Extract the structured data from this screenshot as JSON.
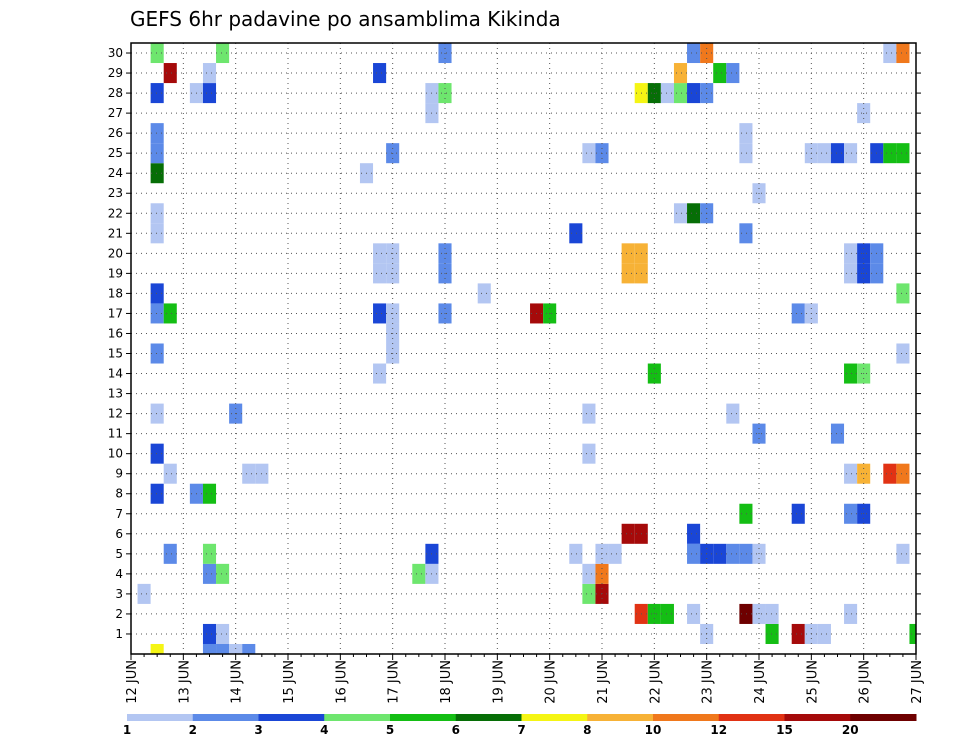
{
  "chart_data": {
    "type": "heatmap",
    "title": "GEFS 6hr padavine po ansamblima Kikinda",
    "xlabel": "",
    "ylabel": "",
    "x_ticks": [
      "12 JUN",
      "13 JUN",
      "14 JUN",
      "15 JUN",
      "16 JUN",
      "17 JUN",
      "18 JUN",
      "19 JUN",
      "20 JUN",
      "21 JUN",
      "22 JUN",
      "23 JUN",
      "24 JUN",
      "25 JUN",
      "26 JUN",
      "27 JUN"
    ],
    "y_ticks": [
      1,
      2,
      3,
      4,
      5,
      6,
      7,
      8,
      9,
      10,
      11,
      12,
      13,
      14,
      15,
      16,
      17,
      18,
      19,
      20,
      21,
      22,
      23,
      24,
      25,
      26,
      27,
      28,
      29,
      30
    ],
    "x_range": [
      "12 JUN 00Z",
      "27 JUN 00Z"
    ],
    "y_range": [
      0,
      30
    ],
    "time_step_hours": 6,
    "grid": true,
    "colorbar": {
      "labels": [
        "1",
        "2",
        "3",
        "4",
        "5",
        "6",
        "7",
        "8",
        "10",
        "12",
        "15",
        "20"
      ],
      "colors": [
        "#b3c6f2",
        "#5c8ae8",
        "#1a46d6",
        "#6ee66e",
        "#14be14",
        "#066e06",
        "#f5f514",
        "#f7b236",
        "#f0781c",
        "#e13214",
        "#a50a0a",
        "#6e0000"
      ]
    },
    "cells": [
      {
        "t": "12 JUN 12Z",
        "m": 0,
        "c": "#f5f514"
      },
      {
        "t": "13 JUN 12Z",
        "m": 0,
        "c": "#5c8ae8"
      },
      {
        "t": "13 JUN 18Z",
        "m": 0,
        "c": "#5c8ae8"
      },
      {
        "t": "14 JUN 00Z",
        "m": 0,
        "c": "#b3c6f2"
      },
      {
        "t": "14 JUN 06Z",
        "m": 0,
        "c": "#5c8ae8"
      },
      {
        "t": "13 JUN 12Z",
        "m": 1,
        "c": "#1a46d6"
      },
      {
        "t": "13 JUN 18Z",
        "m": 1,
        "c": "#b3c6f2"
      },
      {
        "t": "23 JUN 00Z",
        "m": 1,
        "c": "#b3c6f2"
      },
      {
        "t": "24 JUN 06Z",
        "m": 1,
        "c": "#14be14"
      },
      {
        "t": "24 JUN 18Z",
        "m": 1,
        "c": "#a50a0a"
      },
      {
        "t": "25 JUN 00Z",
        "m": 1,
        "c": "#b3c6f2"
      },
      {
        "t": "25 JUN 06Z",
        "m": 1,
        "c": "#b3c6f2"
      },
      {
        "t": "27 JUN 00Z",
        "m": 1,
        "c": "#14be14"
      },
      {
        "t": "21 JUN 18Z",
        "m": 2,
        "c": "#e13214"
      },
      {
        "t": "22 JUN 00Z",
        "m": 2,
        "c": "#14be14"
      },
      {
        "t": "22 JUN 06Z",
        "m": 2,
        "c": "#14be14"
      },
      {
        "t": "22 JUN 18Z",
        "m": 2,
        "c": "#b3c6f2"
      },
      {
        "t": "23 JUN 18Z",
        "m": 2,
        "c": "#6e0000"
      },
      {
        "t": "24 JUN 00Z",
        "m": 2,
        "c": "#b3c6f2"
      },
      {
        "t": "24 JUN 06Z",
        "m": 2,
        "c": "#b3c6f2"
      },
      {
        "t": "25 JUN 18Z",
        "m": 2,
        "c": "#b3c6f2"
      },
      {
        "t": "12 JUN 06Z",
        "m": 3,
        "c": "#b3c6f2"
      },
      {
        "t": "20 JUN 18Z",
        "m": 3,
        "c": "#6ee66e"
      },
      {
        "t": "21 JUN 00Z",
        "m": 3,
        "c": "#a50a0a"
      },
      {
        "t": "13 JUN 12Z",
        "m": 4,
        "c": "#5c8ae8"
      },
      {
        "t": "13 JUN 18Z",
        "m": 4,
        "c": "#6ee66e"
      },
      {
        "t": "17 JUN 12Z",
        "m": 4,
        "c": "#6ee66e"
      },
      {
        "t": "17 JUN 18Z",
        "m": 4,
        "c": "#b3c6f2"
      },
      {
        "t": "20 JUN 18Z",
        "m": 4,
        "c": "#b3c6f2"
      },
      {
        "t": "21 JUN 00Z",
        "m": 4,
        "c": "#f0781c"
      },
      {
        "t": "12 JUN 18Z",
        "m": 5,
        "c": "#5c8ae8"
      },
      {
        "t": "13 JUN 12Z",
        "m": 5,
        "c": "#6ee66e"
      },
      {
        "t": "17 JUN 18Z",
        "m": 5,
        "c": "#1a46d6"
      },
      {
        "t": "20 JUN 12Z",
        "m": 5,
        "c": "#b3c6f2"
      },
      {
        "t": "21 JUN 00Z",
        "m": 5,
        "c": "#b3c6f2"
      },
      {
        "t": "21 JUN 06Z",
        "m": 5,
        "c": "#b3c6f2"
      },
      {
        "t": "22 JUN 18Z",
        "m": 5,
        "c": "#5c8ae8"
      },
      {
        "t": "23 JUN 00Z",
        "m": 5,
        "c": "#1a46d6"
      },
      {
        "t": "23 JUN 06Z",
        "m": 5,
        "c": "#1a46d6"
      },
      {
        "t": "23 JUN 12Z",
        "m": 5,
        "c": "#5c8ae8"
      },
      {
        "t": "23 JUN 18Z",
        "m": 5,
        "c": "#5c8ae8"
      },
      {
        "t": "24 JUN 00Z",
        "m": 5,
        "c": "#b3c6f2"
      },
      {
        "t": "26 JUN 18Z",
        "m": 5,
        "c": "#b3c6f2"
      },
      {
        "t": "21 JUN 12Z",
        "m": 6,
        "c": "#a50a0a"
      },
      {
        "t": "21 JUN 18Z",
        "m": 6,
        "c": "#a50a0a"
      },
      {
        "t": "22 JUN 18Z",
        "m": 6,
        "c": "#1a46d6"
      },
      {
        "t": "23 JUN 18Z",
        "m": 7,
        "c": "#14be14"
      },
      {
        "t": "24 JUN 18Z",
        "m": 7,
        "c": "#1a46d6"
      },
      {
        "t": "25 JUN 18Z",
        "m": 7,
        "c": "#5c8ae8"
      },
      {
        "t": "26 JUN 00Z",
        "m": 7,
        "c": "#1a46d6"
      },
      {
        "t": "12 JUN 12Z",
        "m": 8,
        "c": "#1a46d6"
      },
      {
        "t": "13 JUN 06Z",
        "m": 8,
        "c": "#5c8ae8"
      },
      {
        "t": "13 JUN 12Z",
        "m": 8,
        "c": "#14be14"
      },
      {
        "t": "12 JUN 18Z",
        "m": 9,
        "c": "#b3c6f2"
      },
      {
        "t": "14 JUN 06Z",
        "m": 9,
        "c": "#b3c6f2"
      },
      {
        "t": "14 JUN 12Z",
        "m": 9,
        "c": "#b3c6f2"
      },
      {
        "t": "25 JUN 18Z",
        "m": 9,
        "c": "#b3c6f2"
      },
      {
        "t": "26 JUN 00Z",
        "m": 9,
        "c": "#f7b236"
      },
      {
        "t": "26 JUN 12Z",
        "m": 9,
        "c": "#e13214"
      },
      {
        "t": "26 JUN 18Z",
        "m": 9,
        "c": "#f0781c"
      },
      {
        "t": "12 JUN 12Z",
        "m": 10,
        "c": "#1a46d6"
      },
      {
        "t": "20 JUN 18Z",
        "m": 10,
        "c": "#b3c6f2"
      },
      {
        "t": "24 JUN 00Z",
        "m": 11,
        "c": "#5c8ae8"
      },
      {
        "t": "25 JUN 12Z",
        "m": 11,
        "c": "#5c8ae8"
      },
      {
        "t": "12 JUN 12Z",
        "m": 12,
        "c": "#b3c6f2"
      },
      {
        "t": "14 JUN 00Z",
        "m": 12,
        "c": "#5c8ae8"
      },
      {
        "t": "20 JUN 18Z",
        "m": 12,
        "c": "#b3c6f2"
      },
      {
        "t": "23 JUN 12Z",
        "m": 12,
        "c": "#b3c6f2"
      },
      {
        "t": "16 JUN 18Z",
        "m": 14,
        "c": "#b3c6f2"
      },
      {
        "t": "22 JUN 00Z",
        "m": 14,
        "c": "#14be14"
      },
      {
        "t": "25 JUN 18Z",
        "m": 14,
        "c": "#14be14"
      },
      {
        "t": "26 JUN 00Z",
        "m": 14,
        "c": "#6ee66e"
      },
      {
        "t": "12 JUN 12Z",
        "m": 15,
        "c": "#5c8ae8"
      },
      {
        "t": "17 JUN 00Z",
        "m": 15,
        "c": "#b3c6f2"
      },
      {
        "t": "26 JUN 18Z",
        "m": 15,
        "c": "#b3c6f2"
      },
      {
        "t": "17 JUN 00Z",
        "m": 16,
        "c": "#b3c6f2"
      },
      {
        "t": "12 JUN 12Z",
        "m": 17,
        "c": "#5c8ae8"
      },
      {
        "t": "12 JUN 18Z",
        "m": 17,
        "c": "#14be14"
      },
      {
        "t": "16 JUN 18Z",
        "m": 17,
        "c": "#1a46d6"
      },
      {
        "t": "17 JUN 00Z",
        "m": 17,
        "c": "#b3c6f2"
      },
      {
        "t": "18 JUN 00Z",
        "m": 17,
        "c": "#5c8ae8"
      },
      {
        "t": "19 JUN 18Z",
        "m": 17,
        "c": "#a50a0a"
      },
      {
        "t": "20 JUN 00Z",
        "m": 17,
        "c": "#14be14"
      },
      {
        "t": "24 JUN 18Z",
        "m": 17,
        "c": "#5c8ae8"
      },
      {
        "t": "25 JUN 00Z",
        "m": 17,
        "c": "#b3c6f2"
      },
      {
        "t": "12 JUN 12Z",
        "m": 18,
        "c": "#1a46d6"
      },
      {
        "t": "18 JUN 18Z",
        "m": 18,
        "c": "#b3c6f2"
      },
      {
        "t": "26 JUN 18Z",
        "m": 18,
        "c": "#6ee66e"
      },
      {
        "t": "16 JUN 18Z",
        "m": 19,
        "c": "#b3c6f2"
      },
      {
        "t": "17 JUN 00Z",
        "m": 19,
        "c": "#b3c6f2"
      },
      {
        "t": "18 JUN 00Z",
        "m": 19,
        "c": "#5c8ae8"
      },
      {
        "t": "21 JUN 12Z",
        "m": 19,
        "c": "#f7b236"
      },
      {
        "t": "21 JUN 18Z",
        "m": 19,
        "c": "#f7b236"
      },
      {
        "t": "25 JUN 18Z",
        "m": 19,
        "c": "#b3c6f2"
      },
      {
        "t": "26 JUN 00Z",
        "m": 19,
        "c": "#1a46d6"
      },
      {
        "t": "26 JUN 06Z",
        "m": 19,
        "c": "#5c8ae8"
      },
      {
        "t": "16 JUN 18Z",
        "m": 20,
        "c": "#b3c6f2"
      },
      {
        "t": "17 JUN 00Z",
        "m": 20,
        "c": "#b3c6f2"
      },
      {
        "t": "18 JUN 00Z",
        "m": 20,
        "c": "#5c8ae8"
      },
      {
        "t": "21 JUN 12Z",
        "m": 20,
        "c": "#f7b236"
      },
      {
        "t": "21 JUN 18Z",
        "m": 20,
        "c": "#f7b236"
      },
      {
        "t": "25 JUN 18Z",
        "m": 20,
        "c": "#b3c6f2"
      },
      {
        "t": "26 JUN 00Z",
        "m": 20,
        "c": "#1a46d6"
      },
      {
        "t": "26 JUN 06Z",
        "m": 20,
        "c": "#5c8ae8"
      },
      {
        "t": "12 JUN 12Z",
        "m": 21,
        "c": "#b3c6f2"
      },
      {
        "t": "20 JUN 12Z",
        "m": 21,
        "c": "#1a46d6"
      },
      {
        "t": "23 JUN 18Z",
        "m": 21,
        "c": "#5c8ae8"
      },
      {
        "t": "12 JUN 12Z",
        "m": 22,
        "c": "#b3c6f2"
      },
      {
        "t": "22 JUN 12Z",
        "m": 22,
        "c": "#b3c6f2"
      },
      {
        "t": "22 JUN 18Z",
        "m": 22,
        "c": "#066e06"
      },
      {
        "t": "23 JUN 00Z",
        "m": 22,
        "c": "#5c8ae8"
      },
      {
        "t": "24 JUN 00Z",
        "m": 23,
        "c": "#b3c6f2"
      },
      {
        "t": "12 JUN 12Z",
        "m": 24,
        "c": "#066e06"
      },
      {
        "t": "16 JUN 12Z",
        "m": 24,
        "c": "#b3c6f2"
      },
      {
        "t": "12 JUN 12Z",
        "m": 25,
        "c": "#5c8ae8"
      },
      {
        "t": "17 JUN 00Z",
        "m": 25,
        "c": "#5c8ae8"
      },
      {
        "t": "20 JUN 18Z",
        "m": 25,
        "c": "#b3c6f2"
      },
      {
        "t": "21 JUN 00Z",
        "m": 25,
        "c": "#5c8ae8"
      },
      {
        "t": "23 JUN 18Z",
        "m": 25,
        "c": "#b3c6f2"
      },
      {
        "t": "25 JUN 00Z",
        "m": 25,
        "c": "#b3c6f2"
      },
      {
        "t": "25 JUN 06Z",
        "m": 25,
        "c": "#b3c6f2"
      },
      {
        "t": "25 JUN 12Z",
        "m": 25,
        "c": "#1a46d6"
      },
      {
        "t": "25 JUN 18Z",
        "m": 25,
        "c": "#b3c6f2"
      },
      {
        "t": "26 JUN 06Z",
        "m": 25,
        "c": "#1a46d6"
      },
      {
        "t": "26 JUN 12Z",
        "m": 25,
        "c": "#14be14"
      },
      {
        "t": "26 JUN 18Z",
        "m": 25,
        "c": "#14be14"
      },
      {
        "t": "12 JUN 12Z",
        "m": 26,
        "c": "#5c8ae8"
      },
      {
        "t": "23 JUN 18Z",
        "m": 26,
        "c": "#b3c6f2"
      },
      {
        "t": "17 JUN 18Z",
        "m": 27,
        "c": "#b3c6f2"
      },
      {
        "t": "26 JUN 00Z",
        "m": 27,
        "c": "#b3c6f2"
      },
      {
        "t": "12 JUN 12Z",
        "m": 28,
        "c": "#1a46d6"
      },
      {
        "t": "13 JUN 06Z",
        "m": 28,
        "c": "#b3c6f2"
      },
      {
        "t": "13 JUN 12Z",
        "m": 28,
        "c": "#1a46d6"
      },
      {
        "t": "17 JUN 18Z",
        "m": 28,
        "c": "#b3c6f2"
      },
      {
        "t": "18 JUN 00Z",
        "m": 28,
        "c": "#6ee66e"
      },
      {
        "t": "21 JUN 18Z",
        "m": 28,
        "c": "#f5f514"
      },
      {
        "t": "22 JUN 00Z",
        "m": 28,
        "c": "#066e06"
      },
      {
        "t": "22 JUN 06Z",
        "m": 28,
        "c": "#b3c6f2"
      },
      {
        "t": "22 JUN 12Z",
        "m": 28,
        "c": "#6ee66e"
      },
      {
        "t": "22 JUN 18Z",
        "m": 28,
        "c": "#1a46d6"
      },
      {
        "t": "23 JUN 00Z",
        "m": 28,
        "c": "#5c8ae8"
      },
      {
        "t": "12 JUN 18Z",
        "m": 29,
        "c": "#a50a0a"
      },
      {
        "t": "13 JUN 12Z",
        "m": 29,
        "c": "#b3c6f2"
      },
      {
        "t": "16 JUN 18Z",
        "m": 29,
        "c": "#1a46d6"
      },
      {
        "t": "22 JUN 12Z",
        "m": 29,
        "c": "#f7b236"
      },
      {
        "t": "23 JUN 06Z",
        "m": 29,
        "c": "#14be14"
      },
      {
        "t": "23 JUN 12Z",
        "m": 29,
        "c": "#5c8ae8"
      },
      {
        "t": "12 JUN 12Z",
        "m": 30,
        "c": "#6ee66e"
      },
      {
        "t": "13 JUN 18Z",
        "m": 30,
        "c": "#6ee66e"
      },
      {
        "t": "18 JUN 00Z",
        "m": 30,
        "c": "#5c8ae8"
      },
      {
        "t": "22 JUN 18Z",
        "m": 30,
        "c": "#5c8ae8"
      },
      {
        "t": "23 JUN 00Z",
        "m": 30,
        "c": "#f0781c"
      },
      {
        "t": "26 JUN 12Z",
        "m": 30,
        "c": "#b3c6f2"
      },
      {
        "t": "26 JUN 18Z",
        "m": 30,
        "c": "#f0781c"
      }
    ]
  }
}
